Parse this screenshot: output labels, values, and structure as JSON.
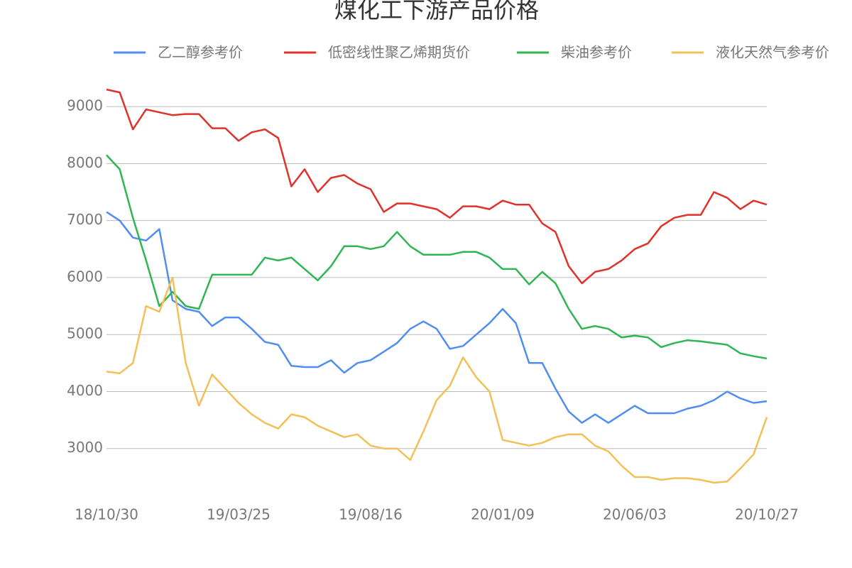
{
  "chart_data": {
    "type": "line",
    "title": "煤化工下游产品价格",
    "categories": [
      "18/10/30",
      null,
      null,
      null,
      null,
      null,
      null,
      null,
      null,
      null,
      "19/03/25",
      null,
      null,
      null,
      null,
      null,
      null,
      null,
      null,
      null,
      "19/08/16",
      null,
      null,
      null,
      null,
      null,
      null,
      null,
      null,
      null,
      "20/01/09",
      null,
      null,
      null,
      null,
      null,
      null,
      null,
      null,
      null,
      "20/06/03",
      null,
      null,
      null,
      null,
      null,
      null,
      null,
      null,
      null,
      "20/10/27"
    ],
    "series": [
      {
        "name": "乙二醇参考价",
        "color": "#4f8ef0",
        "values": [
          7150,
          7000,
          6700,
          6650,
          6850,
          5600,
          5450,
          5400,
          5150,
          5300,
          5300,
          5100,
          4870,
          4820,
          4450,
          4430,
          4430,
          4550,
          4330,
          4500,
          4550,
          4700,
          4850,
          5100,
          5230,
          5100,
          4750,
          4800,
          5000,
          5200,
          5450,
          5200,
          4500,
          4500,
          4050,
          3650,
          3450,
          3600,
          3450,
          3600,
          3750,
          3620,
          3620,
          3620,
          3700,
          3750,
          3850,
          4000,
          3880,
          3800,
          3830
        ]
      },
      {
        "name": "低密线性聚乙烯期货价",
        "color": "#e0312b",
        "values": [
          9300,
          9250,
          8600,
          8950,
          8900,
          8850,
          8870,
          8870,
          8620,
          8620,
          8400,
          8550,
          8600,
          8450,
          7600,
          7900,
          7500,
          7750,
          7800,
          7650,
          7550,
          7150,
          7300,
          7300,
          7250,
          7200,
          7050,
          7250,
          7250,
          7200,
          7350,
          7280,
          7280,
          6950,
          6800,
          6200,
          5900,
          6100,
          6150,
          6300,
          6500,
          6600,
          6900,
          7050,
          7100,
          7100,
          7500,
          7400,
          7200,
          7350,
          7280
        ]
      },
      {
        "name": "柴油参考价",
        "color": "#2fb552",
        "values": [
          8150,
          7900,
          7050,
          6300,
          5500,
          5750,
          5500,
          5450,
          6050,
          6050,
          6050,
          6050,
          6350,
          6300,
          6350,
          6150,
          5950,
          6200,
          6550,
          6550,
          6500,
          6550,
          6800,
          6550,
          6400,
          6400,
          6400,
          6450,
          6450,
          6350,
          6150,
          6150,
          5880,
          6100,
          5900,
          5450,
          5100,
          5150,
          5100,
          4950,
          4980,
          4950,
          4780,
          4850,
          4900,
          4880,
          4850,
          4820,
          4670,
          4620,
          4580
        ]
      },
      {
        "name": "液化天然气参考价",
        "color": "#f2c057",
        "values": [
          4350,
          4320,
          4500,
          5500,
          5400,
          6000,
          4500,
          3750,
          4300,
          4050,
          3800,
          3600,
          3450,
          3350,
          3600,
          3550,
          3400,
          3300,
          3200,
          3250,
          3050,
          3000,
          3000,
          2800,
          3300,
          3850,
          4100,
          4600,
          4250,
          4000,
          3150,
          3100,
          3050,
          3100,
          3200,
          3250,
          3250,
          3050,
          2950,
          2700,
          2500,
          2500,
          2450,
          2480,
          2480,
          2450,
          2400,
          2420,
          2650,
          2900,
          3550
        ]
      }
    ],
    "ylim": [
      2000,
      9500
    ],
    "yticks": [
      3000,
      4000,
      5000,
      6000,
      7000,
      8000,
      9000
    ],
    "grid": true,
    "legend": "top"
  }
}
